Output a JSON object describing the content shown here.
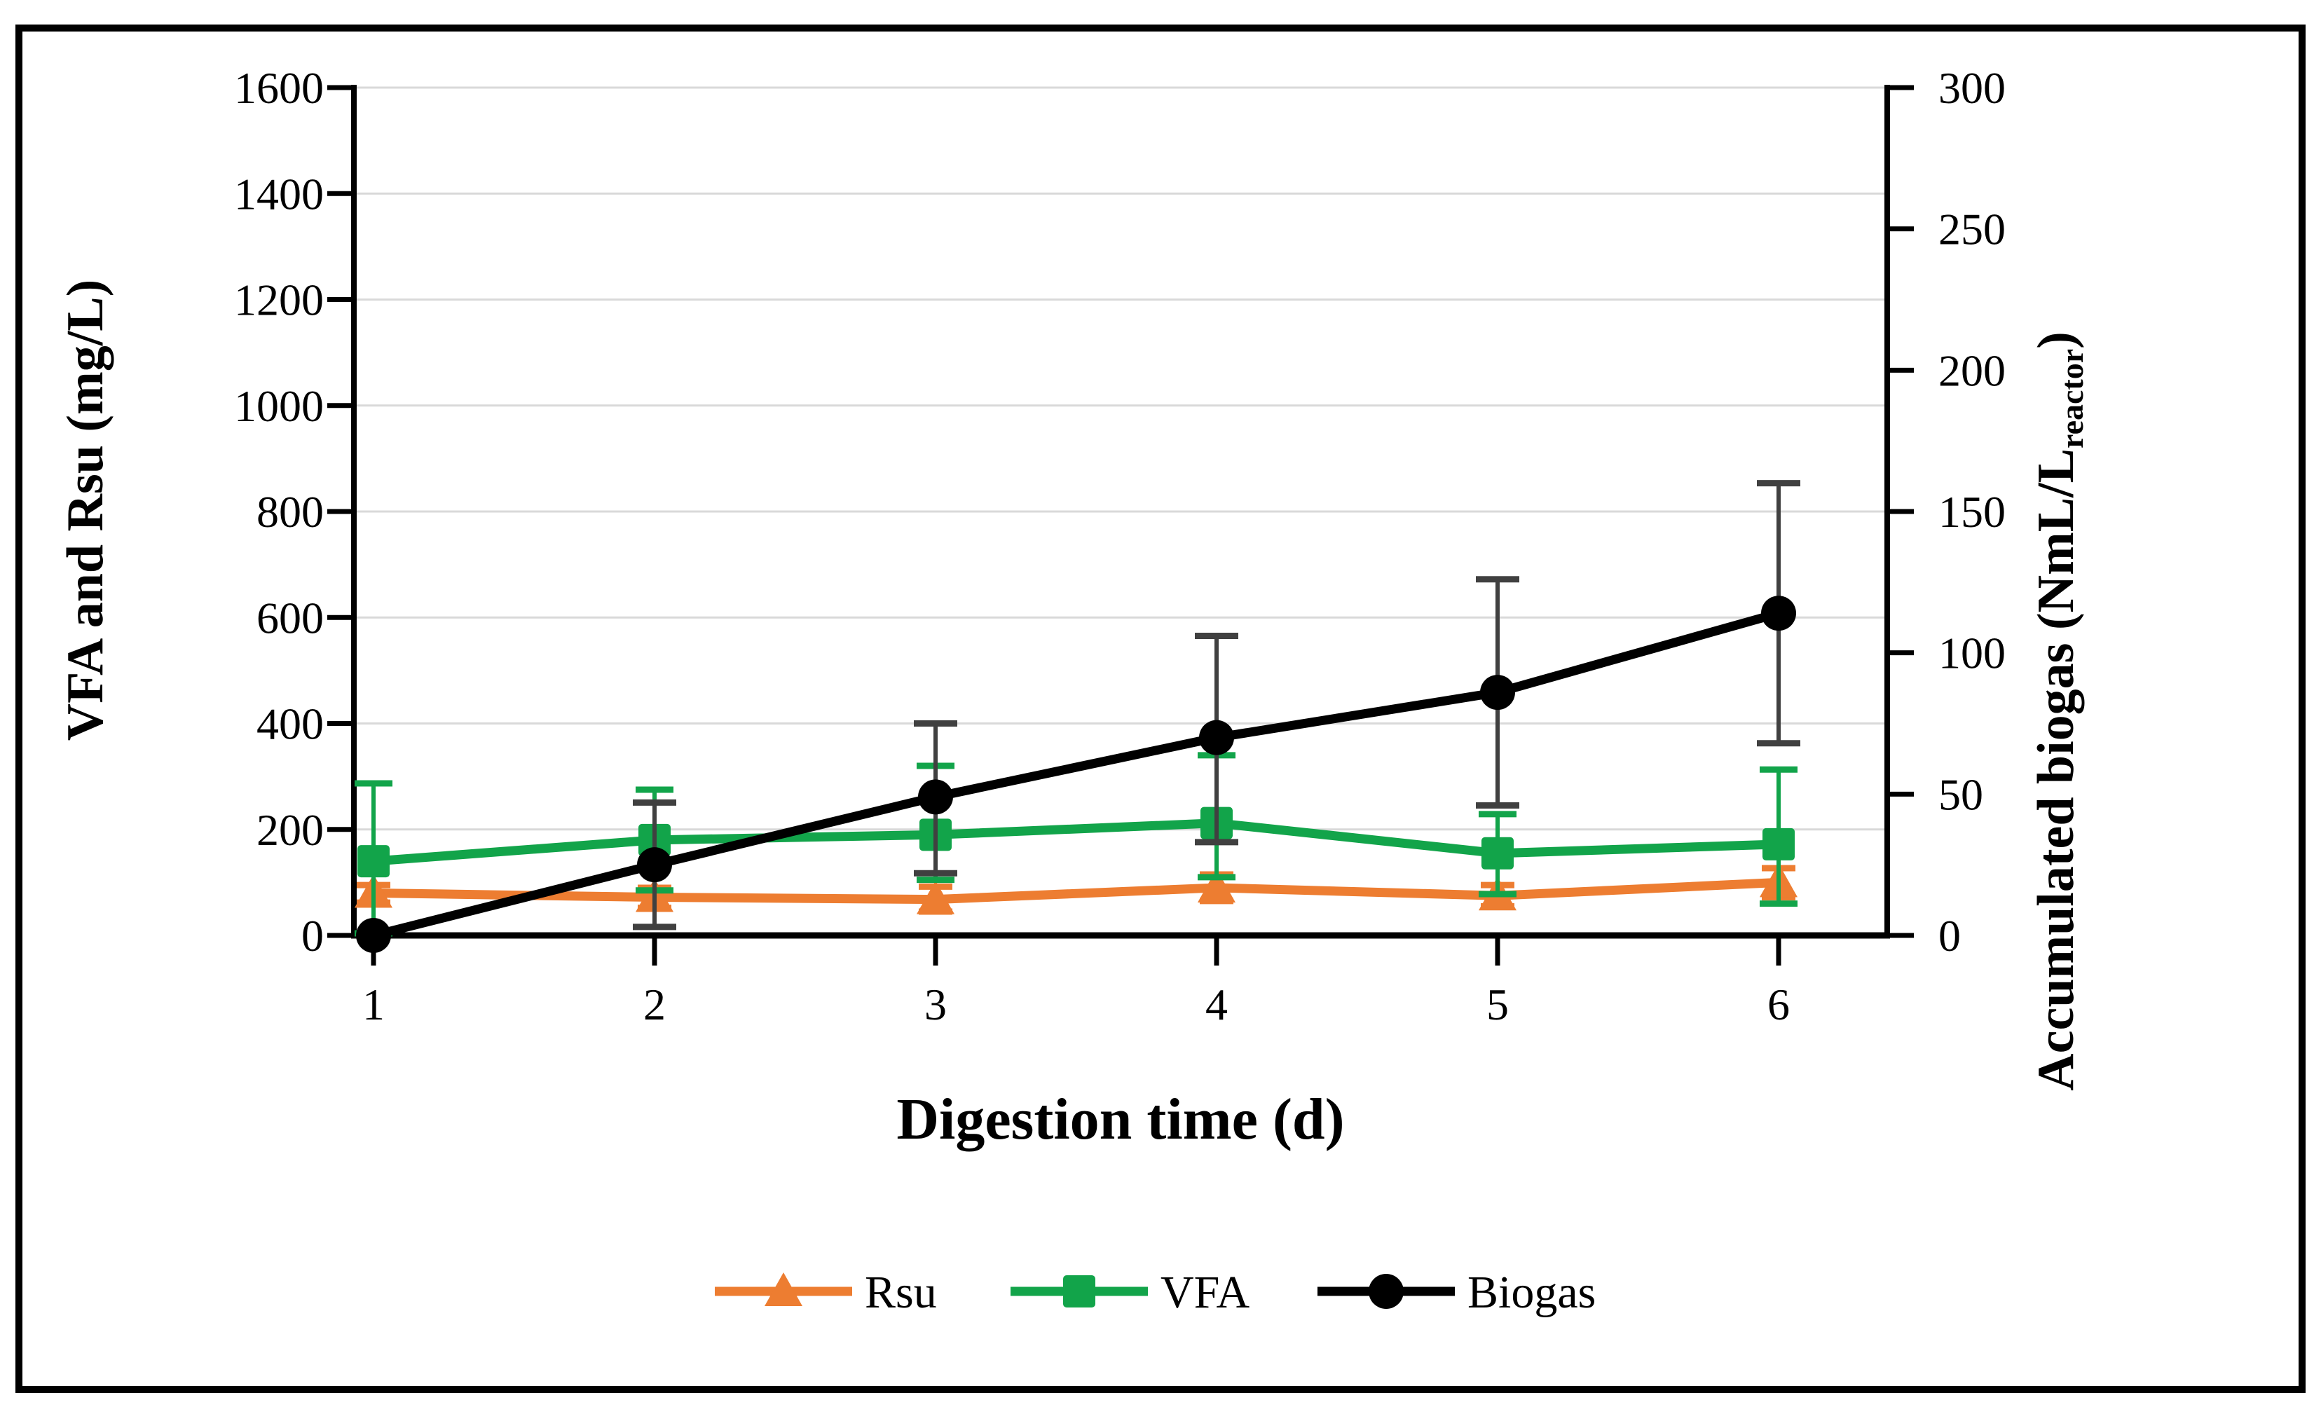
{
  "figure": {
    "background": "#ffffff",
    "border_color": "#000000",
    "gridline_color": "#d9d9d9",
    "axis_color": "#000000"
  },
  "chart_data": {
    "type": "line",
    "x": [
      1,
      2,
      3,
      4,
      5,
      6
    ],
    "xlabel": "Digestion time (d)",
    "ylabel_left": "VFA and Rsu (mg/L)",
    "ylabel_right_main": "Accumulated biogas (NmL/L",
    "ylabel_right_sub": "reactor",
    "ylabel_right_end": ")",
    "left_axis": {
      "min": 0,
      "max": 1600,
      "step": 200,
      "ticks": [
        0,
        200,
        400,
        600,
        800,
        1000,
        1200,
        1400,
        1600
      ]
    },
    "right_axis": {
      "min": 0,
      "max": 300,
      "step": 50,
      "ticks": [
        0,
        50,
        100,
        150,
        200,
        250,
        300
      ]
    },
    "grid": true,
    "legend_position": "bottom",
    "series": [
      {
        "name": "Rsu",
        "axis": "left",
        "color": "#ED7D31",
        "err_color": "#ED7D31",
        "marker": "triangle",
        "values": [
          80,
          72,
          68,
          90,
          75,
          100
        ],
        "err_top": [
          95,
          90,
          92,
          115,
          95,
          127
        ],
        "err_bottom": [
          62,
          52,
          45,
          65,
          55,
          72
        ]
      },
      {
        "name": "VFA",
        "axis": "left",
        "color": "#12A44A",
        "err_color": "#12A44A",
        "marker": "square",
        "values": [
          140,
          180,
          190,
          212,
          155,
          172
        ],
        "err_top": [
          287,
          275,
          320,
          340,
          229,
          313
        ],
        "err_bottom": [
          4,
          85,
          105,
          110,
          78,
          60
        ]
      },
      {
        "name": "Biogas",
        "axis": "right",
        "color": "#000000",
        "err_color": "#404040",
        "marker": "circle",
        "values": [
          0,
          25,
          49,
          70,
          86,
          114
        ],
        "err_top": [
          null,
          47,
          75,
          106,
          126,
          160
        ],
        "err_bottom": [
          null,
          3,
          22,
          33,
          46,
          68
        ]
      }
    ]
  }
}
